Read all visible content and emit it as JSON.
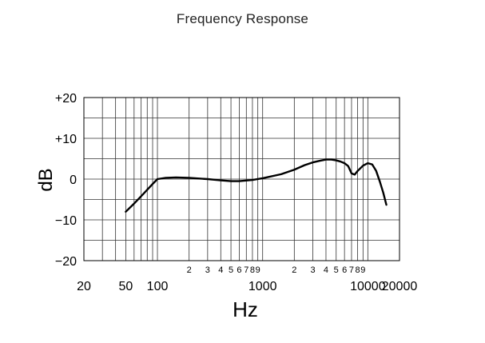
{
  "chart_data": {
    "type": "line",
    "title": "Frequency Response",
    "xlabel": "Hz",
    "ylabel": "dB",
    "xscale": "log",
    "xlim": [
      20,
      20000
    ],
    "ylim": [
      -20,
      20
    ],
    "grid": true,
    "y_ticks": [
      {
        "value": 20,
        "label": "+20"
      },
      {
        "value": 10,
        "label": "+10"
      },
      {
        "value": 0,
        "label": "0"
      },
      {
        "value": -10,
        "label": "−10"
      },
      {
        "value": -20,
        "label": "−20"
      }
    ],
    "y_gridlines": [
      20,
      15,
      10,
      5,
      0,
      -5,
      -10,
      -15,
      -20
    ],
    "x_major_ticks": [
      {
        "value": 20,
        "label": "20"
      },
      {
        "value": 50,
        "label": "50"
      },
      {
        "value": 100,
        "label": "100"
      },
      {
        "value": 1000,
        "label": "1000"
      },
      {
        "value": 10000,
        "label": "10000"
      },
      {
        "value": 20000,
        "label": "20000"
      }
    ],
    "x_minor_ticks": [
      {
        "value": 200,
        "label": "2"
      },
      {
        "value": 300,
        "label": "3"
      },
      {
        "value": 400,
        "label": "4"
      },
      {
        "value": 500,
        "label": "5"
      },
      {
        "value": 600,
        "label": "6"
      },
      {
        "value": 700,
        "label": "7"
      },
      {
        "value": 800,
        "label": "8"
      },
      {
        "value": 900,
        "label": "9"
      },
      {
        "value": 2000,
        "label": "2"
      },
      {
        "value": 3000,
        "label": "3"
      },
      {
        "value": 4000,
        "label": "4"
      },
      {
        "value": 5000,
        "label": "5"
      },
      {
        "value": 6000,
        "label": "6"
      },
      {
        "value": 7000,
        "label": "7"
      },
      {
        "value": 8000,
        "label": "8"
      },
      {
        "value": 9000,
        "label": "9"
      }
    ],
    "x_gridlines": [
      20,
      30,
      40,
      50,
      60,
      70,
      80,
      90,
      100,
      200,
      300,
      400,
      500,
      600,
      700,
      800,
      900,
      1000,
      2000,
      3000,
      4000,
      5000,
      6000,
      7000,
      8000,
      9000,
      10000,
      20000
    ],
    "series": [
      {
        "color": "#000000",
        "x": [
          50,
          60,
          70,
          80,
          90,
          100,
          120,
          150,
          200,
          300,
          400,
          500,
          600,
          800,
          1000,
          1500,
          2000,
          2500,
          3000,
          3500,
          4000,
          4500,
          5000,
          5500,
          6000,
          6500,
          7000,
          7500,
          8000,
          9000,
          10000,
          11000,
          12000,
          13000,
          14000,
          15000
        ],
        "y": [
          -8,
          -6,
          -4.2,
          -2.6,
          -1.2,
          0,
          0.3,
          0.4,
          0.3,
          0,
          -0.3,
          -0.5,
          -0.5,
          -0.2,
          0.2,
          1.2,
          2.3,
          3.4,
          4.1,
          4.5,
          4.8,
          4.8,
          4.6,
          4.3,
          3.9,
          3.2,
          1.4,
          1.1,
          2.0,
          3.3,
          3.9,
          3.6,
          2.0,
          -0.6,
          -3.3,
          -6.3
        ]
      }
    ]
  }
}
